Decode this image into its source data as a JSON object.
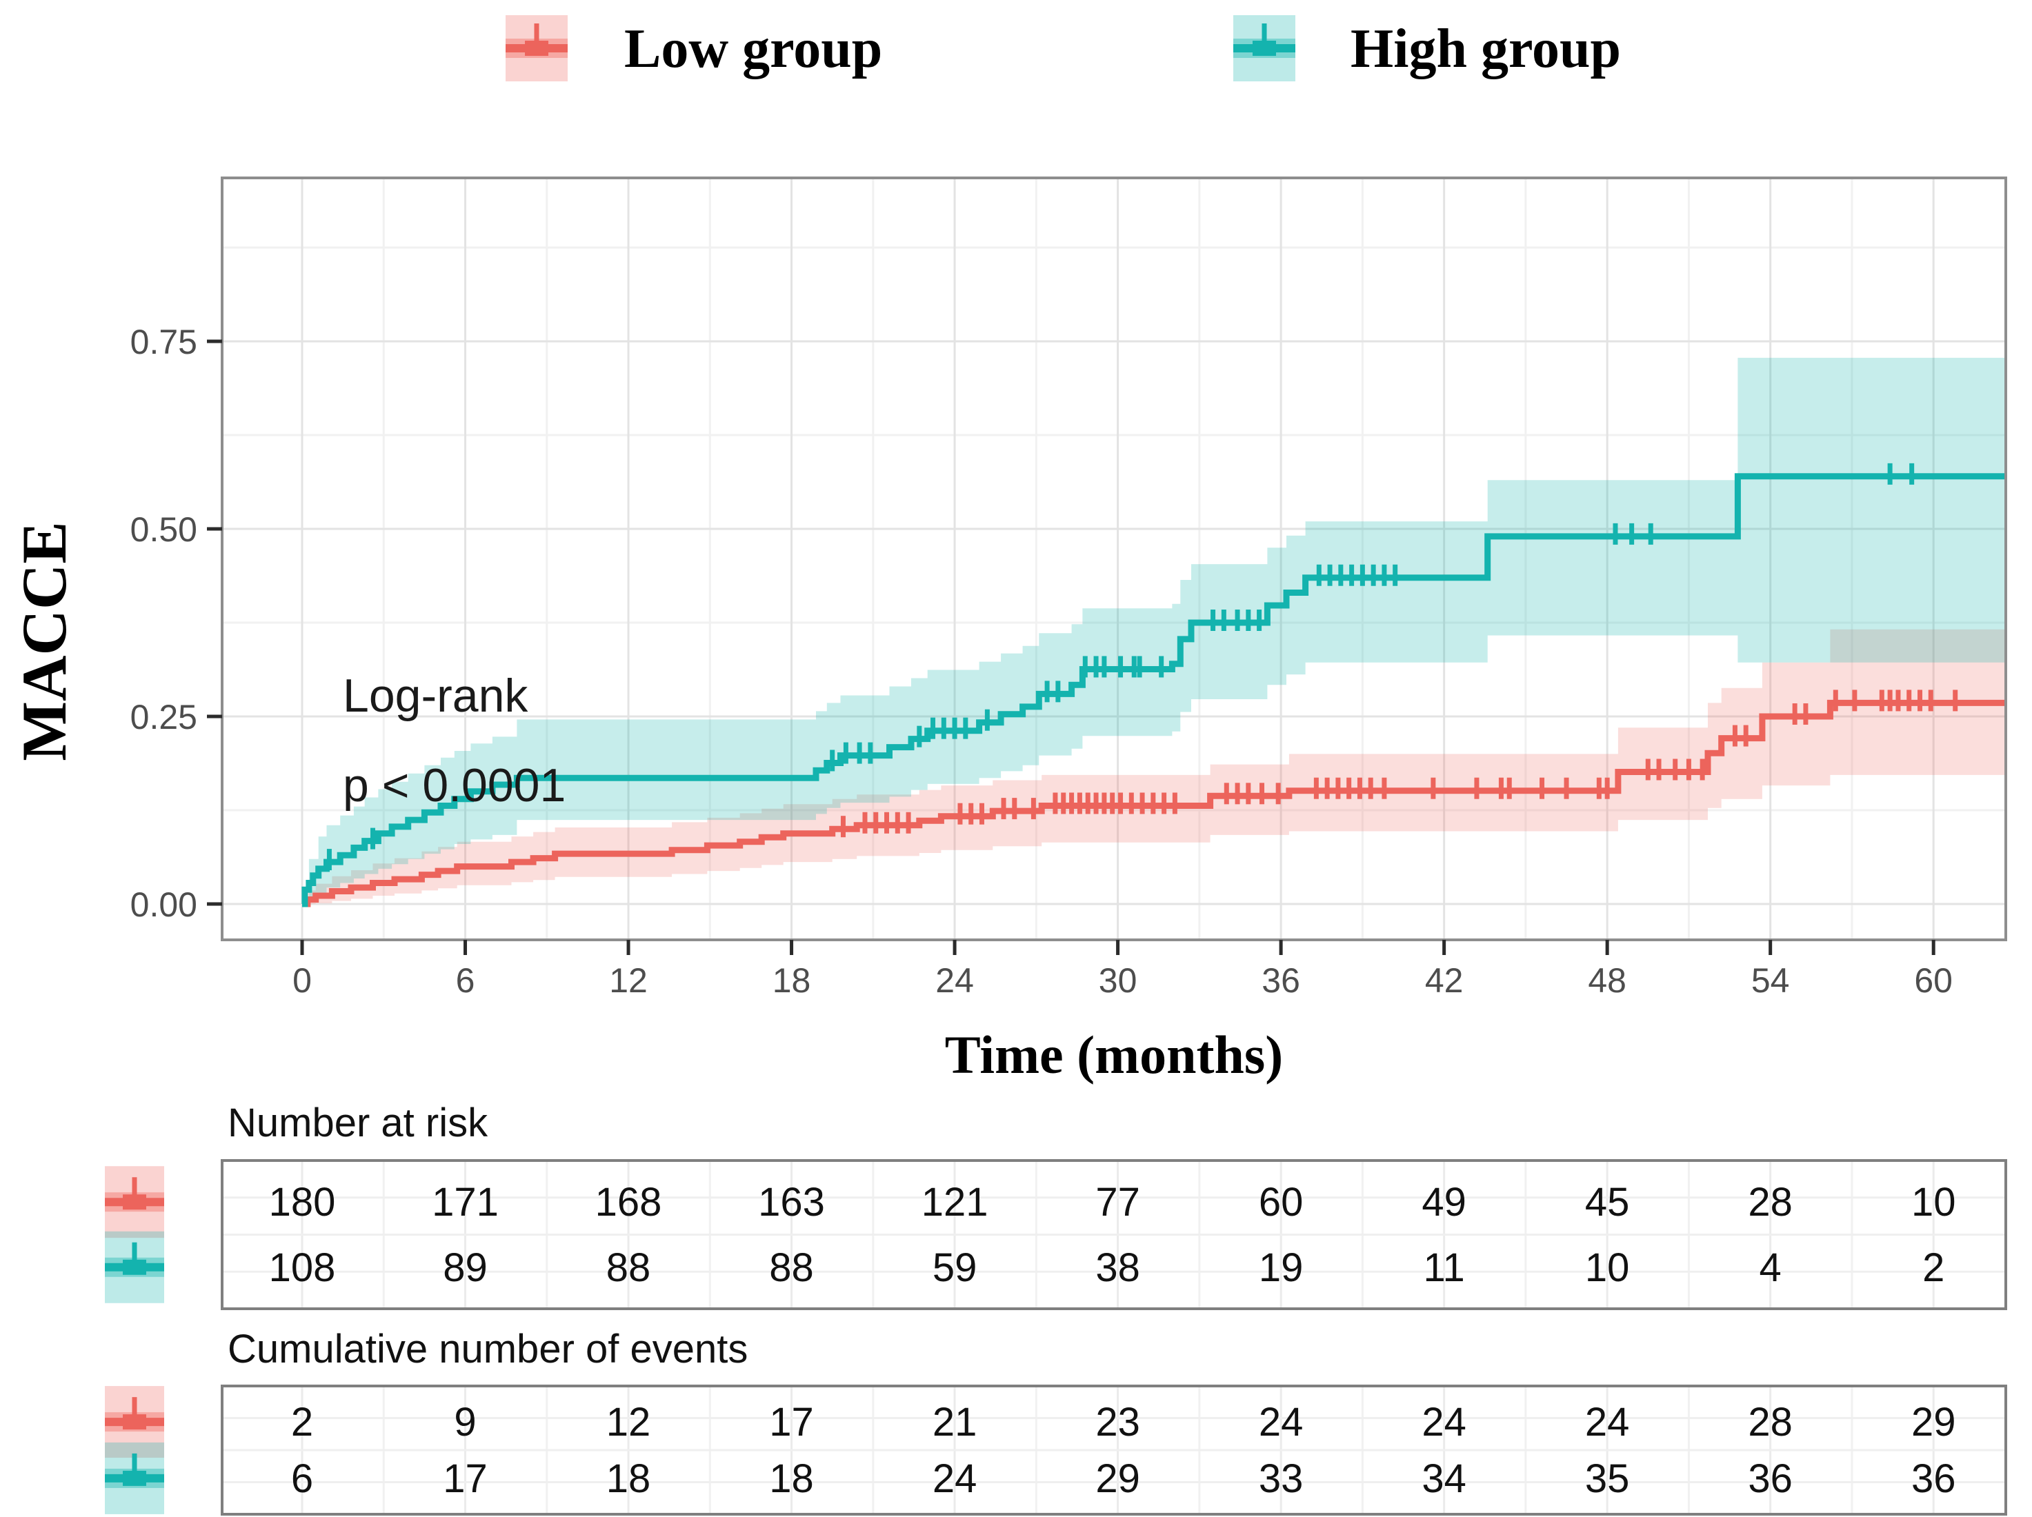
{
  "legend": {
    "items": [
      {
        "label": "Low group",
        "color": "#EC645C",
        "fill_rgb": "238,97,89",
        "fill_alpha": 0.21
      },
      {
        "label": "High group",
        "color": "#14B3AE",
        "fill_rgb": "18,178,172",
        "fill_alpha": 0.24
      }
    ]
  },
  "annotation": {
    "line1": "Log-rank",
    "line2": "p < 0.0001"
  },
  "axes": {
    "y_title": "MACCE",
    "x_title": "Time (months)",
    "x_tick_labels": [
      "0",
      "6",
      "12",
      "18",
      "24",
      "30",
      "36",
      "42",
      "48",
      "54",
      "60"
    ],
    "y_tick_labels": [
      "0.00",
      "0.25",
      "0.50",
      "0.75"
    ]
  },
  "tables": [
    {
      "title": "Number at risk",
      "rows": [
        {
          "group": "Low group",
          "values": [
            "180",
            "171",
            "168",
            "163",
            "121",
            "77",
            "60",
            "49",
            "45",
            "28",
            "10"
          ]
        },
        {
          "group": "High group",
          "values": [
            "108",
            "89",
            "88",
            "88",
            "59",
            "38",
            "19",
            "11",
            "10",
            "4",
            "2"
          ]
        }
      ]
    },
    {
      "title": "Cumulative number of events",
      "rows": [
        {
          "group": "Low group",
          "values": [
            "2",
            "9",
            "12",
            "17",
            "21",
            "23",
            "24",
            "24",
            "24",
            "28",
            "29"
          ]
        },
        {
          "group": "High group",
          "values": [
            "6",
            "17",
            "18",
            "18",
            "24",
            "29",
            "33",
            "34",
            "35",
            "36",
            "36"
          ]
        }
      ]
    }
  ],
  "chart_data": {
    "type": "line",
    "subtype": "kaplan-meier-cumulative-incidence",
    "title": "",
    "xlabel": "Time (months)",
    "ylabel": "MACCE",
    "xlim": [
      0,
      63
    ],
    "ylim": [
      0,
      1
    ],
    "x_ticks": [
      0,
      6,
      12,
      18,
      24,
      30,
      36,
      42,
      48,
      54,
      60
    ],
    "y_ticks": [
      0,
      0.25,
      0.5,
      0.75
    ],
    "grid": "on",
    "legend_position": "top",
    "test": "Log-rank",
    "pvalue": "p < 0.0001",
    "series": [
      {
        "name": "Low group",
        "color": "#EC645C",
        "steps": [
          [
            0,
            0
          ],
          [
            0.2,
            0.006
          ],
          [
            0.5,
            0.011
          ],
          [
            1.1,
            0.017
          ],
          [
            1.8,
            0.022
          ],
          [
            2.6,
            0.028
          ],
          [
            3.4,
            0.033
          ],
          [
            4.4,
            0.039
          ],
          [
            5,
            0.044
          ],
          [
            5.7,
            0.05
          ],
          [
            7.7,
            0.056
          ],
          [
            8.5,
            0.061
          ],
          [
            9.3,
            0.067
          ],
          [
            13.6,
            0.072
          ],
          [
            14.9,
            0.078
          ],
          [
            16.1,
            0.083
          ],
          [
            16.9,
            0.089
          ],
          [
            17.7,
            0.094
          ],
          [
            19.5,
            0.1
          ],
          [
            20.4,
            0.105
          ],
          [
            22.7,
            0.111
          ],
          [
            23.5,
            0.117
          ],
          [
            25.4,
            0.124
          ],
          [
            27.2,
            0.131
          ],
          [
            33.4,
            0.144
          ],
          [
            36.3,
            0.151
          ],
          [
            48.4,
            0.176
          ],
          [
            51.7,
            0.201
          ],
          [
            52.2,
            0.221
          ],
          [
            53.7,
            0.25
          ],
          [
            56.2,
            0.268
          ]
        ],
        "censor_times": [
          19.9,
          20.7,
          21.1,
          21.5,
          21.9,
          22.3,
          24.2,
          24.6,
          25,
          25.8,
          26.2,
          26.9,
          27.7,
          28,
          28.3,
          28.6,
          28.9,
          29.2,
          29.5,
          29.8,
          30.1,
          30.5,
          30.9,
          31.3,
          31.7,
          32.1,
          34,
          34.4,
          34.8,
          35.3,
          35.9,
          37.3,
          37.7,
          38.1,
          38.5,
          38.9,
          39.3,
          39.8,
          41.6,
          43.2,
          44.1,
          44.4,
          45.6,
          46.5,
          47.7,
          48,
          49.5,
          49.9,
          50.5,
          51,
          51.5,
          52.7,
          53.1,
          54.9,
          55.3,
          56.4,
          57.1,
          58.1,
          58.4,
          58.7,
          59.1,
          59.5,
          59.9,
          60.8
        ],
        "ci": [
          [
            0,
            0,
            0
          ],
          [
            0.2,
            0,
            0.018
          ],
          [
            0.5,
            0.001,
            0.027
          ],
          [
            1.1,
            0.004,
            0.037
          ],
          [
            1.8,
            0.007,
            0.045
          ],
          [
            2.6,
            0.011,
            0.054
          ],
          [
            3.4,
            0.014,
            0.061
          ],
          [
            4.4,
            0.018,
            0.07
          ],
          [
            5,
            0.021,
            0.076
          ],
          [
            5.7,
            0.025,
            0.083
          ],
          [
            7.7,
            0.029,
            0.09
          ],
          [
            8.5,
            0.032,
            0.096
          ],
          [
            9.3,
            0.036,
            0.102
          ],
          [
            13.6,
            0.04,
            0.109
          ],
          [
            14.9,
            0.044,
            0.115
          ],
          [
            16.1,
            0.048,
            0.121
          ],
          [
            16.9,
            0.052,
            0.127
          ],
          [
            17.7,
            0.056,
            0.133
          ],
          [
            19.5,
            0.06,
            0.14
          ],
          [
            20.4,
            0.064,
            0.146
          ],
          [
            22.7,
            0.068,
            0.152
          ],
          [
            23.5,
            0.072,
            0.158
          ],
          [
            25.4,
            0.077,
            0.165
          ],
          [
            27.2,
            0.082,
            0.172
          ],
          [
            33.4,
            0.092,
            0.186
          ],
          [
            36.3,
            0.097,
            0.2
          ],
          [
            48.4,
            0.112,
            0.235
          ],
          [
            51.7,
            0.128,
            0.268
          ],
          [
            52.2,
            0.14,
            0.288
          ],
          [
            53.7,
            0.158,
            0.322
          ],
          [
            56.2,
            0.172,
            0.366
          ]
        ],
        "number_at_risk": [
          180,
          171,
          168,
          163,
          121,
          77,
          60,
          49,
          45,
          28,
          10
        ],
        "cumulative_events": [
          2,
          9,
          12,
          17,
          21,
          23,
          24,
          24,
          24,
          28,
          29
        ]
      },
      {
        "name": "High group",
        "color": "#14B3AE",
        "steps": [
          [
            0,
            0
          ],
          [
            0.1,
            0.019
          ],
          [
            0.25,
            0.028
          ],
          [
            0.4,
            0.038
          ],
          [
            0.6,
            0.047
          ],
          [
            0.9,
            0.056
          ],
          [
            1.4,
            0.065
          ],
          [
            1.9,
            0.075
          ],
          [
            2.3,
            0.084
          ],
          [
            2.8,
            0.094
          ],
          [
            3.3,
            0.103
          ],
          [
            3.9,
            0.112
          ],
          [
            4.5,
            0.122
          ],
          [
            5.1,
            0.131
          ],
          [
            5.6,
            0.14
          ],
          [
            6.2,
            0.15
          ],
          [
            7,
            0.159
          ],
          [
            7.9,
            0.168
          ],
          [
            18.9,
            0.178
          ],
          [
            19.3,
            0.188
          ],
          [
            19.8,
            0.198
          ],
          [
            21.6,
            0.209
          ],
          [
            22.4,
            0.22
          ],
          [
            23,
            0.231
          ],
          [
            24.9,
            0.242
          ],
          [
            25.7,
            0.253
          ],
          [
            26.5,
            0.263
          ],
          [
            27.1,
            0.28
          ],
          [
            28.3,
            0.292
          ],
          [
            28.7,
            0.313
          ],
          [
            32,
            0.32
          ],
          [
            32.3,
            0.353
          ],
          [
            32.7,
            0.375
          ],
          [
            35.5,
            0.398
          ],
          [
            36.2,
            0.415
          ],
          [
            36.9,
            0.435
          ],
          [
            43.6,
            0.49
          ],
          [
            52.8,
            0.57
          ]
        ],
        "censor_times": [
          1,
          2.6,
          19.5,
          20,
          20.5,
          20.9,
          22.7,
          23.2,
          23.6,
          24,
          24.4,
          25.2,
          27.4,
          27.8,
          28.8,
          29.2,
          29.5,
          30.1,
          30.6,
          30.8,
          31.6,
          33.5,
          33.9,
          34.4,
          34.8,
          35.2,
          37.4,
          37.8,
          38.2,
          38.6,
          39,
          39.4,
          39.8,
          40.2,
          48.3,
          48.9,
          49.6,
          58.4,
          59.2
        ],
        "ci": [
          [
            0,
            0,
            0
          ],
          [
            0.25,
            0.005,
            0.06
          ],
          [
            0.6,
            0.015,
            0.09
          ],
          [
            0.9,
            0.022,
            0.105
          ],
          [
            1.4,
            0.028,
            0.118
          ],
          [
            1.9,
            0.034,
            0.13
          ],
          [
            2.3,
            0.04,
            0.142
          ],
          [
            2.8,
            0.047,
            0.153
          ],
          [
            3.3,
            0.053,
            0.163
          ],
          [
            3.9,
            0.06,
            0.174
          ],
          [
            4.5,
            0.067,
            0.185
          ],
          [
            5.1,
            0.073,
            0.195
          ],
          [
            5.6,
            0.08,
            0.204
          ],
          [
            6.2,
            0.086,
            0.214
          ],
          [
            7,
            0.092,
            0.223
          ],
          [
            7.9,
            0.112,
            0.246
          ],
          [
            18.9,
            0.12,
            0.257
          ],
          [
            19.3,
            0.128,
            0.268
          ],
          [
            19.8,
            0.135,
            0.278
          ],
          [
            21.6,
            0.143,
            0.29
          ],
          [
            22.4,
            0.152,
            0.301
          ],
          [
            23,
            0.16,
            0.312
          ],
          [
            24.9,
            0.168,
            0.323
          ],
          [
            25.7,
            0.177,
            0.334
          ],
          [
            26.5,
            0.185,
            0.344
          ],
          [
            27.1,
            0.198,
            0.361
          ],
          [
            28.3,
            0.207,
            0.373
          ],
          [
            28.7,
            0.224,
            0.394
          ],
          [
            32,
            0.23,
            0.4
          ],
          [
            32.3,
            0.256,
            0.432
          ],
          [
            32.7,
            0.273,
            0.453
          ],
          [
            35.5,
            0.292,
            0.475
          ],
          [
            36.2,
            0.306,
            0.491
          ],
          [
            36.9,
            0.322,
            0.51
          ],
          [
            43.6,
            0.358,
            0.565
          ],
          [
            52.8,
            0.322,
            0.728
          ]
        ],
        "number_at_risk": [
          108,
          89,
          88,
          88,
          59,
          38,
          19,
          11,
          10,
          4,
          2
        ],
        "cumulative_events": [
          6,
          17,
          18,
          18,
          24,
          29,
          33,
          34,
          35,
          36,
          36
        ]
      }
    ]
  }
}
